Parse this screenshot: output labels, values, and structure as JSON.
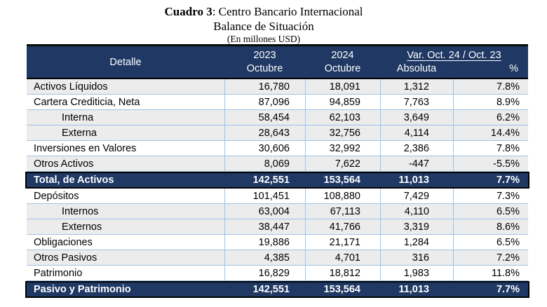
{
  "title": {
    "cuadro": "Cuadro 3",
    "rest": ": Centro Bancario Internacional",
    "line2": "Balance de Situación",
    "line3": "(En millones USD)"
  },
  "table": {
    "header": {
      "detalle": "Detalle",
      "y2023": "2023",
      "y2023_month": "Octubre",
      "y2024": "2024",
      "y2024_month": "Octubre",
      "var_group": "Var. Oct. 24 / Oct. 23",
      "absoluta": "Absoluta",
      "pct": "%"
    },
    "rows": [
      {
        "label": "Activos Líquidos",
        "v2023": "16,780",
        "v2024": "18,091",
        "abs": "1,312",
        "pct": "7.8%",
        "indent": false,
        "style": "gray"
      },
      {
        "label": "Cartera Crediticia, Neta",
        "v2023": "87,096",
        "v2024": "94,859",
        "abs": "7,763",
        "pct": "8.9%",
        "indent": false,
        "style": "white"
      },
      {
        "label": "Interna",
        "v2023": "58,454",
        "v2024": "62,103",
        "abs": "3,649",
        "pct": "6.2%",
        "indent": true,
        "style": "gray"
      },
      {
        "label": "Externa",
        "v2023": "28,643",
        "v2024": "32,756",
        "abs": "4,114",
        "pct": "14.4%",
        "indent": true,
        "style": "gray"
      },
      {
        "label": "Inversiones en Valores",
        "v2023": "30,606",
        "v2024": "32,992",
        "abs": "2,386",
        "pct": "7.8%",
        "indent": false,
        "style": "white"
      },
      {
        "label": "Otros Activos",
        "v2023": "8,069",
        "v2024": "7,622",
        "abs": "-447",
        "pct": "-5.5%",
        "indent": false,
        "style": "gray"
      },
      {
        "label": "Total, de Activos",
        "v2023": "142,551",
        "v2024": "153,564",
        "abs": "11,013",
        "pct": "7.7%",
        "indent": false,
        "style": "total"
      },
      {
        "label": "Depósitos",
        "v2023": "101,451",
        "v2024": "108,880",
        "abs": "7,429",
        "pct": "7.3%",
        "indent": false,
        "style": "white"
      },
      {
        "label": "Internos",
        "v2023": "63,004",
        "v2024": "67,113",
        "abs": "4,110",
        "pct": "6.5%",
        "indent": true,
        "style": "gray"
      },
      {
        "label": "Externos",
        "v2023": "38,447",
        "v2024": "41,766",
        "abs": "3,319",
        "pct": "8.6%",
        "indent": true,
        "style": "gray"
      },
      {
        "label": "Obligaciones",
        "v2023": "19,886",
        "v2024": "21,171",
        "abs": "1,284",
        "pct": "6.5%",
        "indent": false,
        "style": "white"
      },
      {
        "label": "Otros Pasivos",
        "v2023": "4,385",
        "v2024": "4,701",
        "abs": "316",
        "pct": "7.2%",
        "indent": false,
        "style": "gray"
      },
      {
        "label": "Patrimonio",
        "v2023": "16,829",
        "v2024": "18,812",
        "abs": "1,983",
        "pct": "11.8%",
        "indent": false,
        "style": "white"
      },
      {
        "label": "Pasivo y Patrimonio",
        "v2023": "142,551",
        "v2024": "153,564",
        "abs": "11,013",
        "pct": "7.7%",
        "indent": false,
        "style": "total"
      }
    ]
  },
  "chart_data": {
    "type": "table",
    "title": "Cuadro 3: Centro Bancario Internacional — Balance de Situación (En millones USD)",
    "columns": [
      "Detalle",
      "2023 Octubre",
      "2024 Octubre",
      "Var. Absoluta",
      "Var. %"
    ],
    "rows": [
      [
        "Activos Líquidos",
        16780,
        18091,
        1312,
        7.8
      ],
      [
        "Cartera Crediticia, Neta",
        87096,
        94859,
        7763,
        8.9
      ],
      [
        "Interna",
        58454,
        62103,
        3649,
        6.2
      ],
      [
        "Externa",
        28643,
        32756,
        4114,
        14.4
      ],
      [
        "Inversiones en Valores",
        30606,
        32992,
        2386,
        7.8
      ],
      [
        "Otros Activos",
        8069,
        7622,
        -447,
        -5.5
      ],
      [
        "Total, de Activos",
        142551,
        153564,
        11013,
        7.7
      ],
      [
        "Depósitos",
        101451,
        108880,
        7429,
        7.3
      ],
      [
        "Internos",
        63004,
        67113,
        4110,
        6.5
      ],
      [
        "Externos",
        38447,
        41766,
        3319,
        8.6
      ],
      [
        "Obligaciones",
        19886,
        21171,
        1284,
        6.5
      ],
      [
        "Otros Pasivos",
        4385,
        4701,
        316,
        7.2
      ],
      [
        "Patrimonio",
        16829,
        18812,
        1983,
        11.8
      ],
      [
        "Pasivo y Patrimonio",
        142551,
        153564,
        11013,
        7.7
      ]
    ]
  },
  "colors": {
    "navy": "#1F3864",
    "band_gray": "#ECECEC",
    "grid_blue": "#9DC3E6",
    "text_white": "#FFFFFF",
    "text_black": "#000000"
  }
}
